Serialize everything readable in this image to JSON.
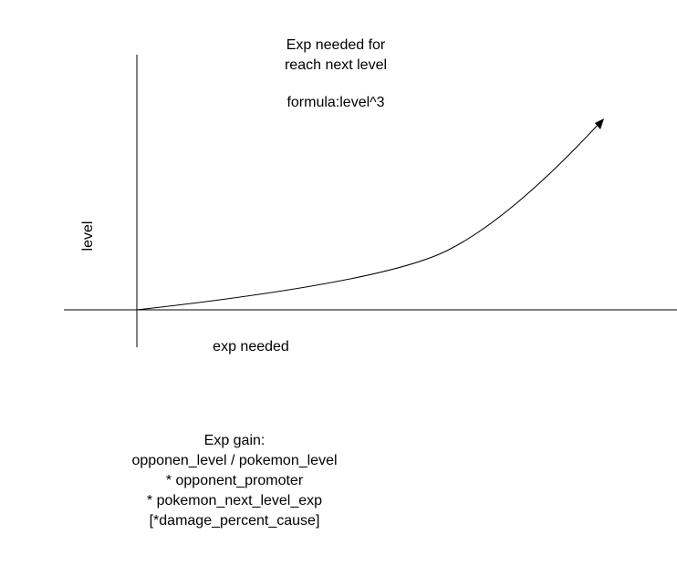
{
  "diagram": {
    "title_lines": [
      "Exp needed for",
      "reach next level"
    ],
    "formula": "formula:level^3",
    "x_axis_label": "exp needed",
    "y_axis_label": "level",
    "exp_gain": {
      "heading": "Exp gain:",
      "lines": [
        "opponen_level / pokemon_level",
        "* opponent_promoter",
        "* pokemon_next_level_exp",
        "[*damage_percent_cause]"
      ]
    },
    "colors": {
      "stroke": "#000000",
      "background": "#ffffff"
    }
  }
}
